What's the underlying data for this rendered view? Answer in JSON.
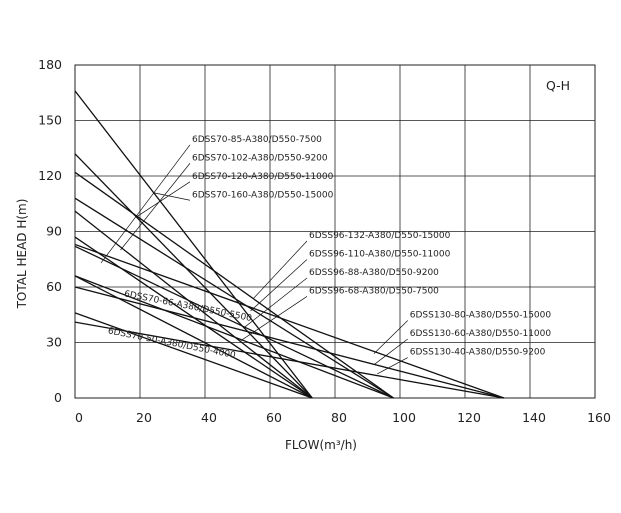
{
  "chart_data": {
    "type": "line",
    "title": "",
    "corner_label": "Q-H",
    "xlabel": "FLOW(m³/h)",
    "ylabel": "TOTAL HEAD H(m)",
    "xlim": [
      0,
      160
    ],
    "ylim": [
      0,
      180
    ],
    "x_ticks": [
      0,
      20,
      40,
      60,
      80,
      100,
      120,
      140,
      160
    ],
    "y_ticks": [
      0,
      30,
      60,
      90,
      120,
      150,
      180
    ],
    "grid": true,
    "colors": {
      "line": "#111111",
      "grid": "#222222",
      "text": "#222222"
    },
    "series": [
      {
        "name": "6DSS70-50-A380/D550-4000",
        "x": [
          0,
          73
        ],
        "y": [
          46,
          0
        ]
      },
      {
        "name": "6DSS70-66-A380/D550-5500",
        "x": [
          0,
          73
        ],
        "y": [
          66,
          0
        ]
      },
      {
        "name": "6DSS70-85-A380/D550-7500",
        "x": [
          0,
          73
        ],
        "y": [
          87,
          0
        ]
      },
      {
        "name": "6DSS70-102-A380/D550-9200",
        "x": [
          0,
          73
        ],
        "y": [
          101,
          0
        ]
      },
      {
        "name": "6DSS70-120-A380/D550-11000",
        "x": [
          0,
          73
        ],
        "y": [
          132,
          0
        ]
      },
      {
        "name": "6DSS70-160-A380/D550-15000",
        "x": [
          0,
          73
        ],
        "y": [
          166,
          0
        ]
      },
      {
        "name": "6DSS96-68-A380/D550-7500",
        "x": [
          0,
          98
        ],
        "y": [
          66,
          0
        ]
      },
      {
        "name": "6DSS96-88-A380/D550-9200",
        "x": [
          0,
          98
        ],
        "y": [
          82,
          0
        ]
      },
      {
        "name": "6DSS96-110-A380/D550-11000",
        "x": [
          0,
          98
        ],
        "y": [
          108,
          0
        ]
      },
      {
        "name": "6DSS96-132-A380/D550-15000",
        "x": [
          0,
          98
        ],
        "y": [
          122,
          0
        ]
      },
      {
        "name": "6DSS130-40-A380/D550-9200",
        "x": [
          0,
          132
        ],
        "y": [
          41,
          0
        ]
      },
      {
        "name": "6DSS130-60-A380/D550-11000",
        "x": [
          0,
          132
        ],
        "y": [
          60,
          0
        ]
      },
      {
        "name": "6DSS130-80-A380/D550-15000",
        "x": [
          0,
          132
        ],
        "y": [
          83,
          0
        ]
      }
    ],
    "annotations": [
      {
        "text": "6DSS70-85-A380/D550-7500",
        "anchor": [
          36,
          138.5
        ],
        "point": [
          8,
          73
        ]
      },
      {
        "text": "6DSS70-102-A380/D550-9200",
        "anchor": [
          36,
          128.5
        ],
        "point": [
          14,
          80
        ]
      },
      {
        "text": "6DSS70-120-A380/D550-11000",
        "anchor": [
          36,
          118.5
        ],
        "point": [
          19,
          98
        ]
      },
      {
        "text": "6DSS70-160-A380/D550-15000",
        "anchor": [
          36,
          108.5
        ],
        "point": [
          24,
          111
        ]
      },
      {
        "text": "6DSS96-132-A380/D550-15000",
        "anchor": [
          72,
          86.5
        ],
        "point": [
          55,
          54
        ]
      },
      {
        "text": "6DSS96-110-A380/D550-11000",
        "anchor": [
          72,
          76.5
        ],
        "point": [
          54,
          47
        ]
      },
      {
        "text": "6DSS96-88-A380/D550-9200",
        "anchor": [
          72,
          66.5
        ],
        "point": [
          52,
          38
        ]
      },
      {
        "text": "6DSS96-68-A380/D550-7500",
        "anchor": [
          72,
          56.5
        ],
        "point": [
          51,
          31
        ]
      },
      {
        "text": "6DSS130-80-A380/D550-15000",
        "anchor": [
          103,
          43.5
        ],
        "point": [
          92,
          24
        ]
      },
      {
        "text": "6DSS130-60-A380/D550-11000",
        "anchor": [
          103,
          33.5
        ],
        "point": [
          92,
          18
        ]
      },
      {
        "text": "6DSS130-40-A380/D550-9200",
        "anchor": [
          103,
          23.5
        ],
        "point": [
          93,
          13
        ]
      }
    ],
    "inline_labels": [
      {
        "text": "6DSS70-66-A380/D550-5500",
        "x": 15,
        "y": 55
      },
      {
        "text": "6DSS70-50-A380/D550-4000",
        "x": 10,
        "y": 35
      }
    ]
  }
}
